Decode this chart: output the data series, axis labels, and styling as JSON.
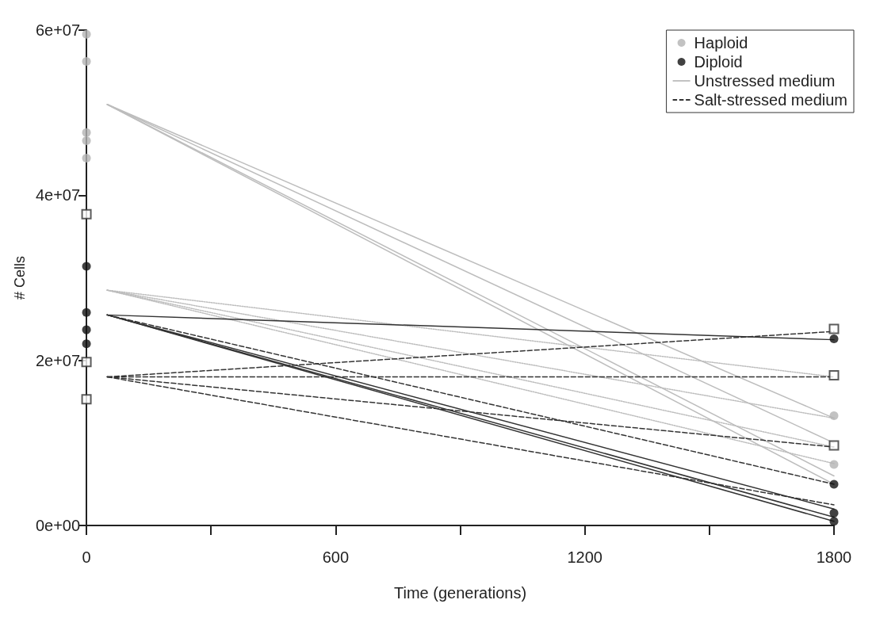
{
  "chart_data": {
    "type": "scatter",
    "xlabel": "Time (generations)",
    "ylabel": "# Cells",
    "xlim": [
      0,
      1800
    ],
    "xticks": [
      0,
      {
        "value": 300,
        "label": null
      },
      600,
      {
        "value": 900,
        "label": null
      },
      1200,
      {
        "value": 1500,
        "label": null
      },
      1800
    ],
    "ylim": [
      0,
      60000000
    ],
    "yticks": [
      {
        "value": 0,
        "label": "0e+00"
      },
      {
        "value": 20000000,
        "label": "2e+07"
      },
      {
        "value": 40000000,
        "label": "4e+07"
      },
      {
        "value": 60000000,
        "label": "6e+07"
      }
    ],
    "grid": false,
    "legend": "top right",
    "series": [
      {
        "name": "Haploid",
        "color": "#b3b3b3",
        "marker": "circle",
        "x": [
          0,
          0,
          0,
          0,
          0,
          1800,
          1800
        ],
        "values": [
          59500000,
          56200000,
          47600000,
          46600000,
          44500000,
          13300000,
          7400000
        ]
      },
      {
        "name": "Diploid",
        "color": "#111111",
        "marker": "circle",
        "x": [
          0,
          0,
          0,
          0,
          1800,
          1800,
          1800,
          1800
        ],
        "values": [
          31400000,
          25800000,
          23700000,
          22000000,
          22600000,
          5000000,
          1500000,
          500000
        ]
      },
      {
        "name": "Unstressed medium",
        "type": "line",
        "color": "#bdbdbd",
        "line_style": "solid",
        "marker": "none",
        "x": [
          50,
          1800
        ],
        "values": [
          51000000,
          13000000
        ]
      },
      {
        "type": "line",
        "color": "#bdbdbd",
        "line_style": "solid",
        "marker": "none",
        "x": [
          50,
          1800
        ],
        "values": [
          51000000,
          10000000
        ]
      },
      {
        "type": "line",
        "color": "#bdbdbd",
        "line_style": "solid",
        "marker": "none",
        "x": [
          50,
          1800
        ],
        "values": [
          51000000,
          6000000
        ]
      },
      {
        "type": "line",
        "color": "#bdbdbd",
        "line_style": "solid",
        "marker": "none",
        "x": [
          50,
          1800
        ],
        "values": [
          51000000,
          5000000
        ]
      },
      {
        "type": "line",
        "color": "#bdbdbd",
        "line_style": "dotted",
        "marker": "none",
        "x": [
          50,
          1800
        ],
        "values": [
          28500000,
          18000000
        ]
      },
      {
        "type": "line",
        "color": "#bdbdbd",
        "line_style": "dotted",
        "marker": "none",
        "x": [
          50,
          1800
        ],
        "values": [
          28500000,
          13000000
        ]
      },
      {
        "type": "line",
        "color": "#bdbdbd",
        "line_style": "dotted",
        "marker": "none",
        "x": [
          50,
          1800
        ],
        "values": [
          28500000,
          9500000
        ]
      },
      {
        "type": "line",
        "color": "#bdbdbd",
        "line_style": "dotted",
        "marker": "none",
        "x": [
          50,
          1800
        ],
        "values": [
          28500000,
          7500000
        ]
      },
      {
        "type": "line",
        "color": "#333333",
        "line_style": "solid",
        "marker": "none",
        "x": [
          50,
          1800
        ],
        "values": [
          25500000,
          22500000
        ]
      },
      {
        "type": "line",
        "color": "#333333",
        "line_style": "solid",
        "marker": "none",
        "x": [
          50,
          1800
        ],
        "values": [
          25500000,
          2000000
        ]
      },
      {
        "type": "line",
        "color": "#333333",
        "line_style": "solid",
        "marker": "none",
        "x": [
          50,
          1800
        ],
        "values": [
          25500000,
          1000000
        ]
      },
      {
        "type": "line",
        "color": "#333333",
        "line_style": "solid",
        "marker": "none",
        "x": [
          50,
          1800
        ],
        "values": [
          25500000,
          500000
        ]
      },
      {
        "type": "line",
        "color": "#333333",
        "line_style": "dashed",
        "marker": "none",
        "x": [
          50,
          1800
        ],
        "values": [
          25500000,
          5000000
        ]
      },
      {
        "name": "Salt-stressed medium",
        "type": "line",
        "color": "#333333",
        "line_style": "dashed",
        "marker": "none",
        "x": [
          50,
          1800
        ],
        "values": [
          18000000,
          23500000
        ]
      },
      {
        "type": "line",
        "color": "#333333",
        "line_style": "dashed",
        "marker": "none",
        "x": [
          50,
          1800
        ],
        "values": [
          18000000,
          18000000
        ]
      },
      {
        "type": "line",
        "color": "#333333",
        "line_style": "dashed",
        "marker": "none",
        "x": [
          50,
          1800
        ],
        "values": [
          18000000,
          9500000
        ]
      },
      {
        "type": "line",
        "color": "#333333",
        "line_style": "dashed",
        "marker": "none",
        "x": [
          50,
          1800
        ],
        "values": [
          18000000,
          2500000
        ]
      },
      {
        "color": "#333333",
        "marker": "square",
        "x": [
          0,
          0,
          0,
          1800,
          1800,
          1800
        ],
        "values": [
          37700000,
          19800000,
          15300000,
          23800000,
          18200000,
          9700000
        ]
      }
    ]
  }
}
